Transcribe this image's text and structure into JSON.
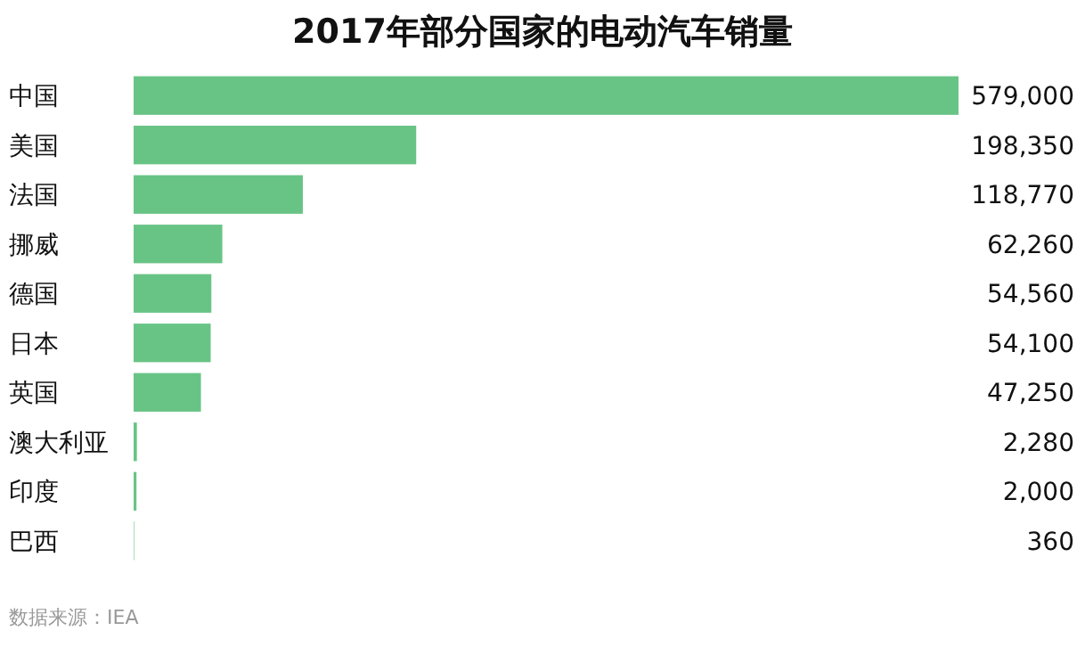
{
  "chart_data": {
    "type": "bar",
    "orientation": "horizontal",
    "title": "2017年部分国家的电动汽车销量",
    "categories": [
      "中国",
      "美国",
      "法国",
      "挪威",
      "德国",
      "日本",
      "英国",
      "澳大利亚",
      "印度",
      "巴西"
    ],
    "values": [
      579000,
      198350,
      118770,
      62260,
      54560,
      54100,
      47250,
      2280,
      2000,
      360
    ],
    "value_labels": [
      "579,000",
      "198,350",
      "118,770",
      "62,260",
      "54,560",
      "54,100",
      "47,250",
      "2,280",
      "2,000",
      "360"
    ],
    "color": "#68c485",
    "annotations": [
      "数据来源：IEA"
    ]
  }
}
